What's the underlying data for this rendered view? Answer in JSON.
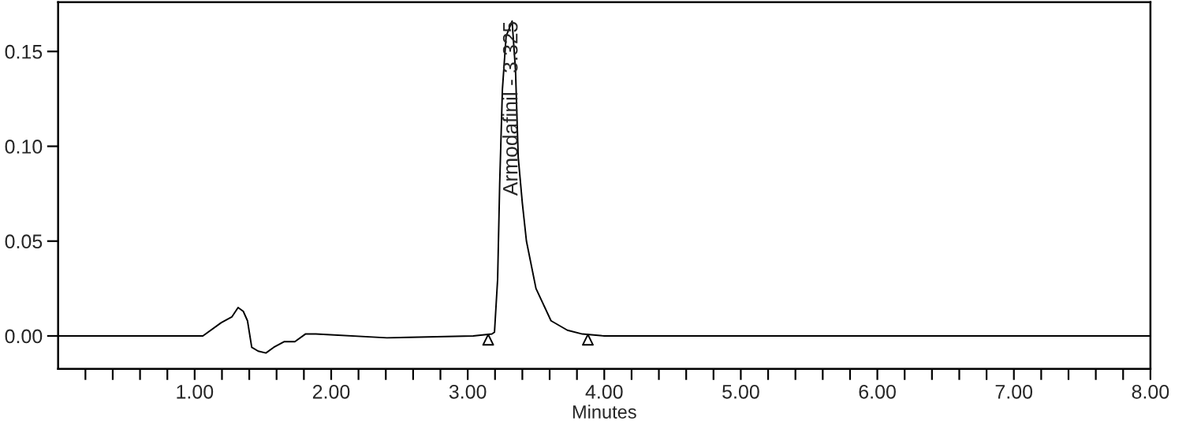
{
  "chart_data": {
    "type": "line",
    "xlabel": "Minutes",
    "xlim": [
      0,
      8
    ],
    "ylim": [
      -0.0174,
      0.176
    ],
    "xticks": [
      {
        "value": 0.2,
        "label": null
      },
      {
        "value": 0.4,
        "label": null
      },
      {
        "value": 0.6,
        "label": null
      },
      {
        "value": 0.8,
        "label": null
      },
      {
        "value": 1,
        "label": "1.00"
      },
      {
        "value": 1.2,
        "label": null
      },
      {
        "value": 1.4,
        "label": null
      },
      {
        "value": 1.6,
        "label": null
      },
      {
        "value": 1.8,
        "label": null
      },
      {
        "value": 2,
        "label": "2.00"
      },
      {
        "value": 2.2,
        "label": null
      },
      {
        "value": 2.4,
        "label": null
      },
      {
        "value": 2.6,
        "label": null
      },
      {
        "value": 2.8,
        "label": null
      },
      {
        "value": 3,
        "label": "3.00"
      },
      {
        "value": 3.2,
        "label": null
      },
      {
        "value": 3.4,
        "label": null
      },
      {
        "value": 3.6,
        "label": null
      },
      {
        "value": 3.8,
        "label": null
      },
      {
        "value": 4,
        "label": "4.00"
      },
      {
        "value": 4.2,
        "label": null
      },
      {
        "value": 4.4,
        "label": null
      },
      {
        "value": 4.6,
        "label": null
      },
      {
        "value": 4.8,
        "label": null
      },
      {
        "value": 5,
        "label": "5.00"
      },
      {
        "value": 5.2,
        "label": null
      },
      {
        "value": 5.4,
        "label": null
      },
      {
        "value": 5.6,
        "label": null
      },
      {
        "value": 5.8,
        "label": null
      },
      {
        "value": 6,
        "label": "6.00"
      },
      {
        "value": 6.2,
        "label": null
      },
      {
        "value": 6.4,
        "label": null
      },
      {
        "value": 6.6,
        "label": null
      },
      {
        "value": 6.8,
        "label": null
      },
      {
        "value": 7,
        "label": "7.00"
      },
      {
        "value": 7.2,
        "label": null
      },
      {
        "value": 7.4,
        "label": null
      },
      {
        "value": 7.6,
        "label": null
      },
      {
        "value": 7.8,
        "label": null
      },
      {
        "value": 8,
        "label": "8.00"
      }
    ],
    "yticks": [
      {
        "value": 0,
        "label": "0.00"
      },
      {
        "value": 0.05,
        "label": "0.05"
      },
      {
        "value": 0.1,
        "label": "0.10"
      },
      {
        "value": 0.15,
        "label": "0.15"
      }
    ],
    "grid": false,
    "legend": false,
    "annotations": [
      {
        "text": "Armodafinil - 3.325",
        "x": 3.325,
        "y": 0.166
      }
    ],
    "series": [
      {
        "color": "#000000",
        "x": [
          0,
          1.06,
          1.195,
          1.272,
          1.318,
          1.356,
          1.387,
          1.418,
          1.465,
          1.522,
          1.579,
          1.657,
          1.734,
          1.811,
          1.888,
          2.408,
          3.04,
          3.177,
          3.196,
          3.219,
          3.234,
          3.254,
          3.281,
          3.325,
          3.35,
          3.37,
          3.4,
          3.43,
          3.5,
          3.61,
          3.73,
          3.84,
          4.0,
          6.4,
          8.0
        ],
        "values": [
          0,
          0,
          0.007,
          0.01,
          0.015,
          0.013,
          0.008,
          -0.006,
          -0.008,
          -0.009,
          -0.006,
          -0.003,
          -0.003,
          0.001,
          0.001,
          -0.001,
          0,
          0.001,
          0.002,
          0.03,
          0.08,
          0.13,
          0.158,
          0.166,
          0.14,
          0.094,
          0.07,
          0.05,
          0.025,
          0.008,
          0.003,
          0.001,
          0,
          0.0,
          0
        ]
      },
      {
        "type": "scatter",
        "color": "#000000",
        "marker": "triangle",
        "x": [
          3.15,
          3.88
        ],
        "values": [
          -0.002,
          -0.002
        ]
      }
    ]
  }
}
